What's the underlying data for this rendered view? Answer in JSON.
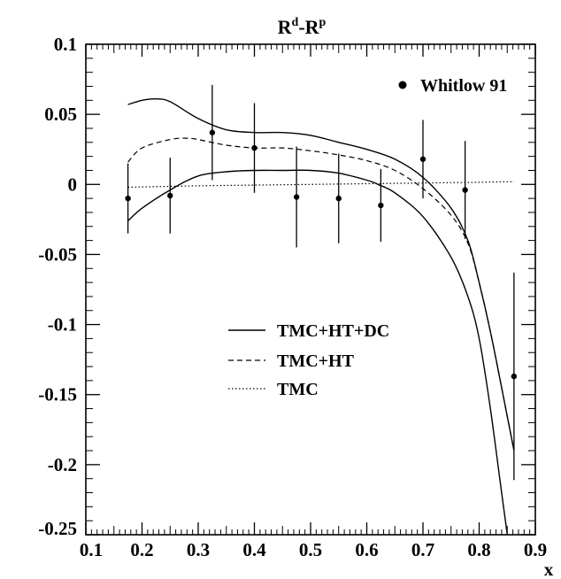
{
  "chart_data": {
    "type": "line",
    "title_base": "R",
    "title_sup1": "d",
    "title_mid": "-R",
    "title_sup2": "p",
    "xlabel": "x",
    "ylabel": "",
    "xlim": [
      0.1,
      0.9
    ],
    "ylim": [
      -0.25,
      0.1
    ],
    "x_ticks": [
      0.1,
      0.2,
      0.3,
      0.4,
      0.5,
      0.6,
      0.7,
      0.8,
      0.9
    ],
    "x_tick_labels": [
      "0.1",
      "0.2",
      "0.3",
      "0.4",
      "0.5",
      "0.6",
      "0.7",
      "0.8",
      "0.9"
    ],
    "y_ticks": [
      0.1,
      0.05,
      0,
      -0.05,
      -0.1,
      -0.15,
      -0.2,
      -0.25
    ],
    "y_tick_labels": [
      "0.1",
      "0.05",
      "0",
      "-0.05",
      "-0.1",
      "-0.15",
      "-0.2",
      "-0.25"
    ],
    "grid": false,
    "data_points": {
      "name": "Whitlow 91",
      "points": [
        {
          "x": 0.175,
          "y": -0.01,
          "err": 0.025
        },
        {
          "x": 0.25,
          "y": -0.008,
          "err": 0.027
        },
        {
          "x": 0.325,
          "y": 0.037,
          "err": 0.034
        },
        {
          "x": 0.4,
          "y": 0.026,
          "err": 0.032
        },
        {
          "x": 0.475,
          "y": -0.009,
          "err": 0.036
        },
        {
          "x": 0.55,
          "y": -0.01,
          "err": 0.032
        },
        {
          "x": 0.625,
          "y": -0.015,
          "err": 0.026
        },
        {
          "x": 0.7,
          "y": 0.018,
          "err": 0.028
        },
        {
          "x": 0.775,
          "y": -0.004,
          "err": 0.035
        },
        {
          "x": 0.862,
          "y": -0.137,
          "err": 0.074
        }
      ]
    },
    "series": [
      {
        "name": "TMC+HT+DC",
        "style": "solid",
        "x": [
          0.175,
          0.2,
          0.225,
          0.25,
          0.3,
          0.35,
          0.4,
          0.45,
          0.5,
          0.55,
          0.6,
          0.65,
          0.7,
          0.75,
          0.78,
          0.8,
          0.82,
          0.84,
          0.862
        ],
        "y": [
          0.057,
          0.06,
          0.061,
          0.059,
          0.047,
          0.039,
          0.037,
          0.037,
          0.035,
          0.03,
          0.025,
          0.018,
          0.005,
          -0.017,
          -0.04,
          -0.07,
          -0.105,
          -0.145,
          -0.19
        ]
      },
      {
        "name": "TMC+HT+DC",
        "style": "solid",
        "x": [
          0.175,
          0.2,
          0.25,
          0.3,
          0.35,
          0.4,
          0.45,
          0.5,
          0.55,
          0.6,
          0.62,
          0.65,
          0.7,
          0.75,
          0.78,
          0.8,
          0.82,
          0.84,
          0.85
        ],
        "y": [
          -0.026,
          -0.017,
          -0.004,
          0.006,
          0.009,
          0.01,
          0.01,
          0.01,
          0.008,
          0.003,
          0.0,
          -0.006,
          -0.023,
          -0.052,
          -0.08,
          -0.11,
          -0.16,
          -0.22,
          -0.25
        ]
      },
      {
        "name": "TMC+HT",
        "style": "dashed",
        "x": [
          0.175,
          0.2,
          0.25,
          0.28,
          0.3,
          0.35,
          0.4,
          0.45,
          0.5,
          0.55,
          0.6,
          0.65,
          0.7,
          0.75,
          0.78,
          0.8,
          0.82,
          0.84,
          0.862
        ],
        "y": [
          0.016,
          0.026,
          0.032,
          0.033,
          0.032,
          0.028,
          0.026,
          0.026,
          0.024,
          0.021,
          0.017,
          0.01,
          -0.003,
          -0.022,
          -0.042,
          -0.07,
          -0.105,
          -0.145,
          -0.19
        ]
      },
      {
        "name": "TMC",
        "style": "dotted",
        "x": [
          0.175,
          0.3,
          0.4,
          0.5,
          0.6,
          0.7,
          0.8,
          0.862
        ],
        "y": [
          -0.002,
          -0.001,
          -0.0005,
          0.0,
          0.0005,
          0.001,
          0.0015,
          0.002
        ]
      }
    ],
    "legend": [
      {
        "label": "TMC+HT+DC",
        "style": "solid"
      },
      {
        "label": "TMC+HT",
        "style": "dashed"
      },
      {
        "label": "TMC",
        "style": "dotted"
      }
    ]
  }
}
